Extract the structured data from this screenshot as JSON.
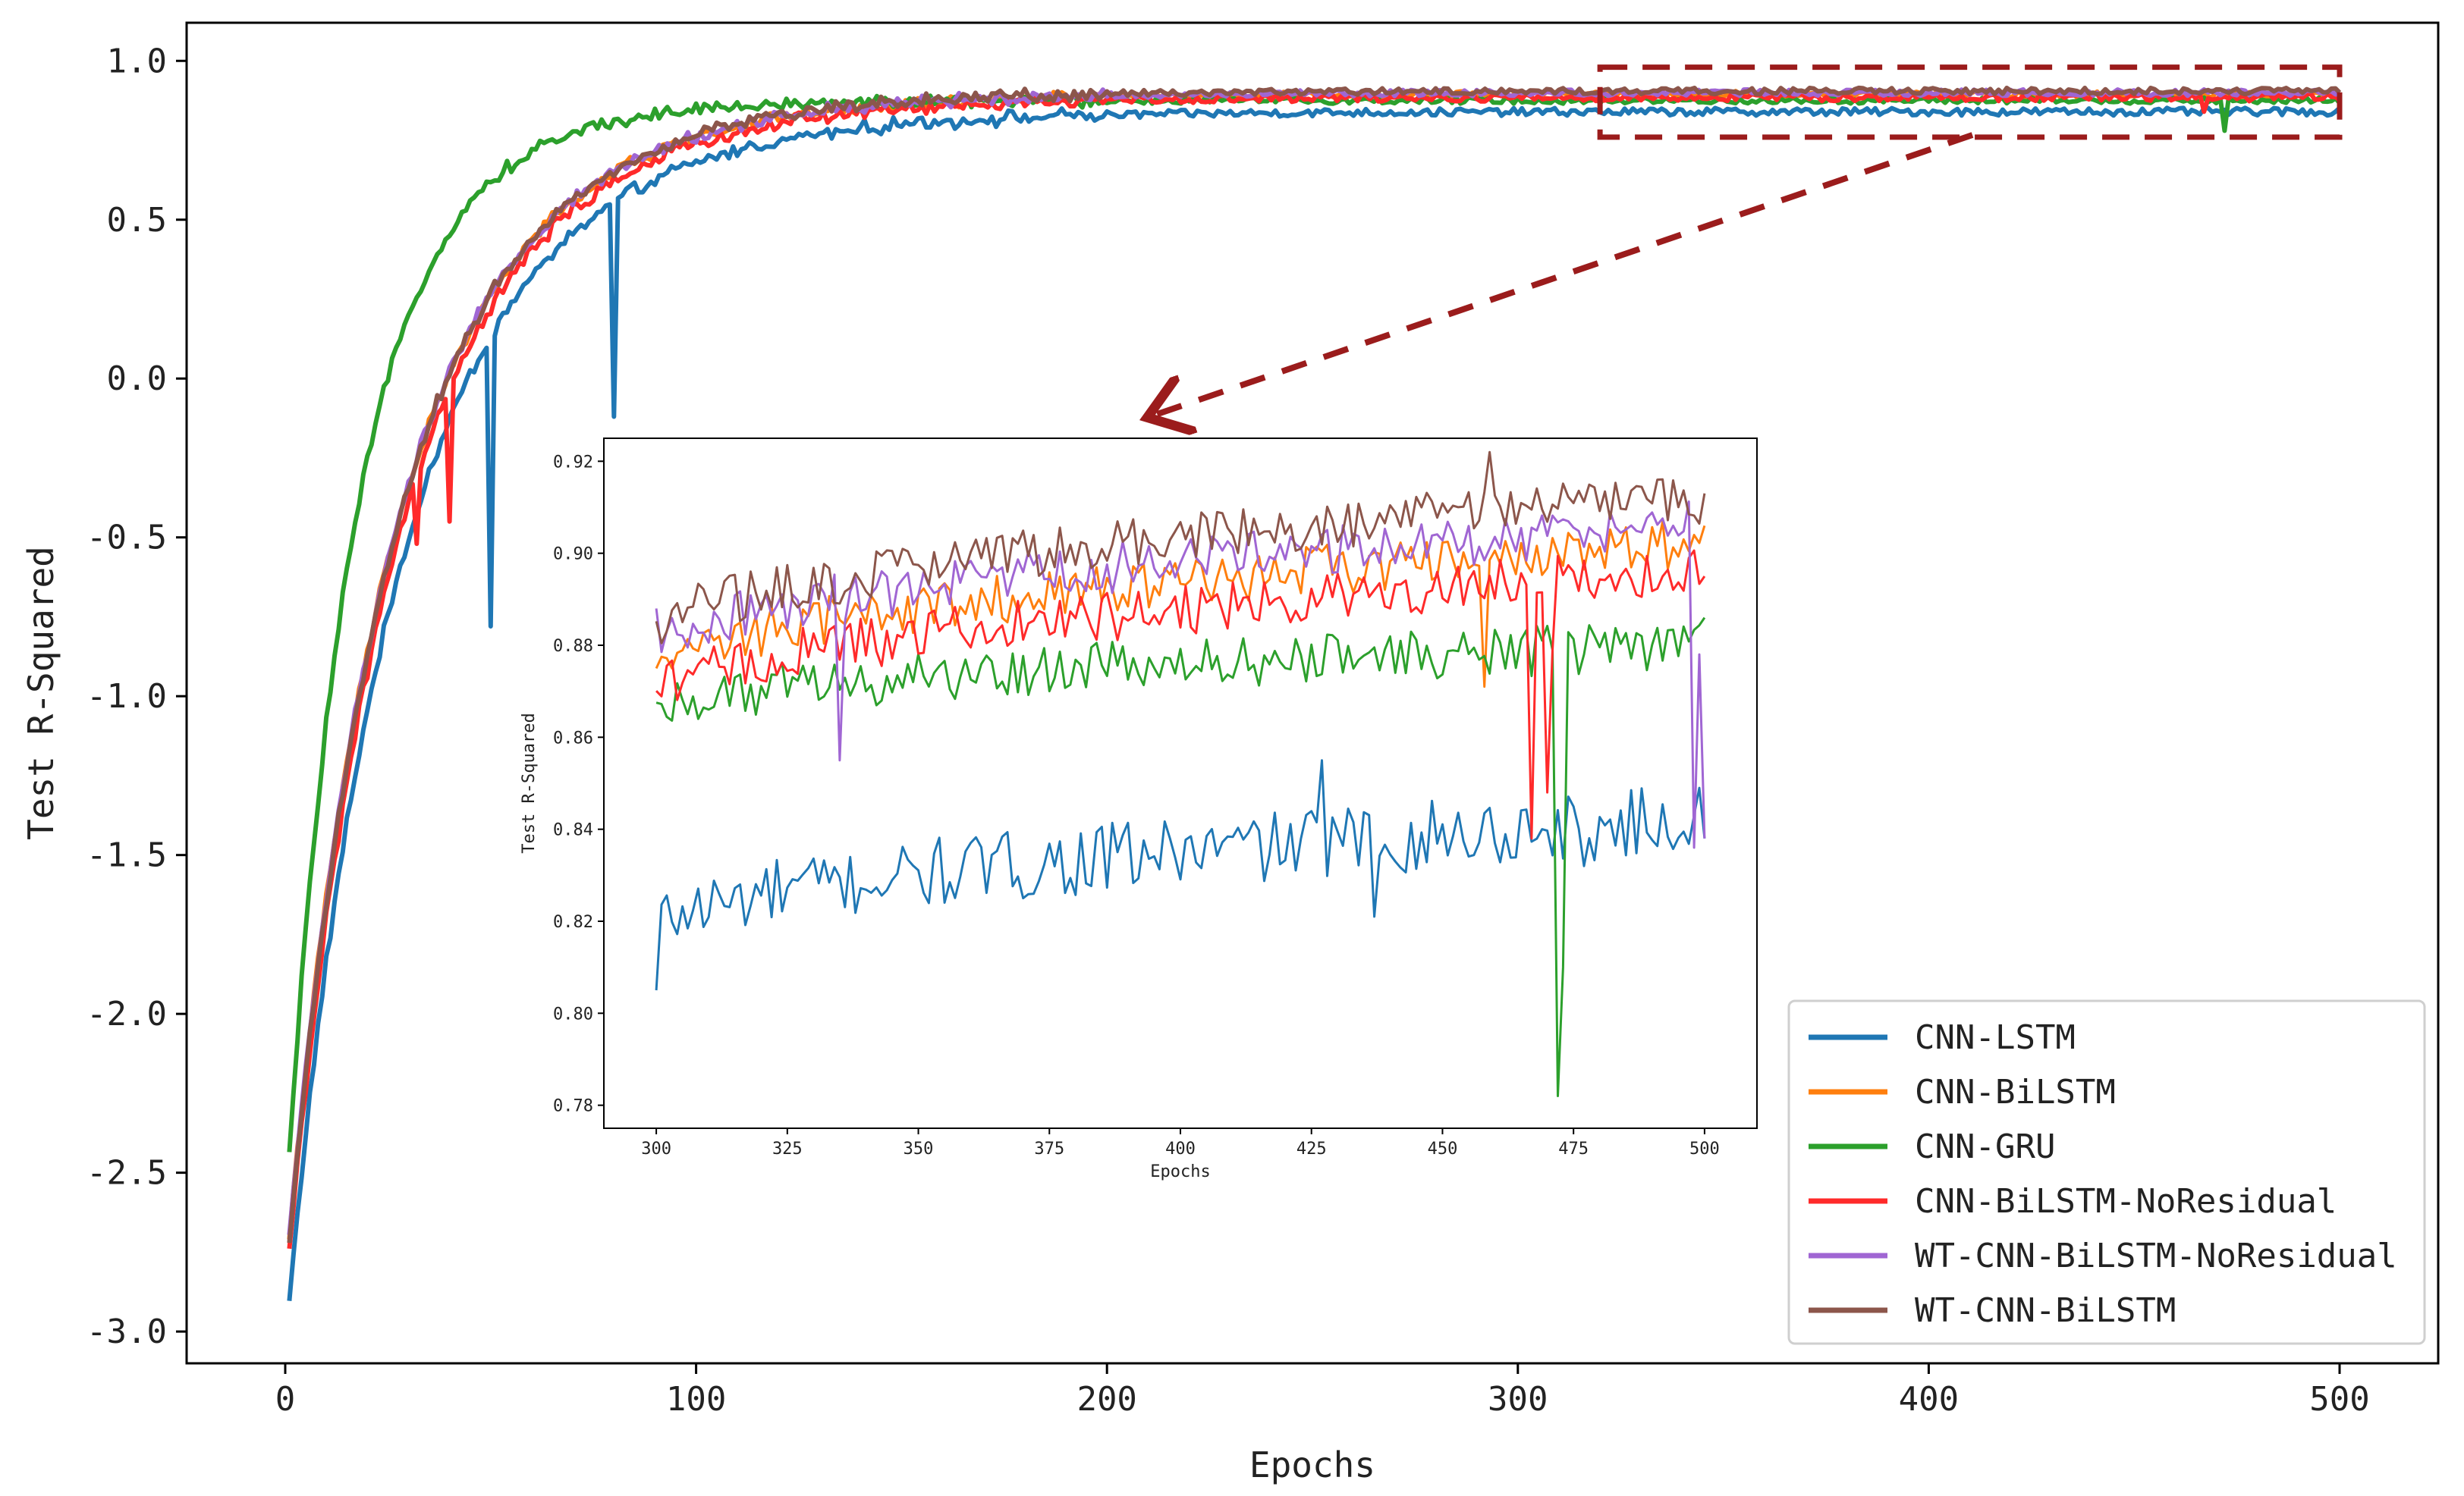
{
  "chart_data": [
    {
      "id": "main",
      "type": "line",
      "title": "",
      "xlabel": "Epochs",
      "ylabel": "Test R-Squared",
      "xlim": [
        -24,
        524
      ],
      "ylim": [
        -3.1,
        1.12
      ],
      "xticks": [
        0,
        100,
        200,
        300,
        400,
        500
      ],
      "xtick_labels": [
        "0",
        "100",
        "200",
        "300",
        "400",
        "500"
      ],
      "yticks": [
        1.0,
        0.5,
        0.0,
        -0.5,
        -1.0,
        -1.5,
        -2.0,
        -2.5,
        -3.0
      ],
      "ytick_labels": [
        "1.0",
        "0.5",
        "0.0",
        "-0.5",
        "-1.0",
        "-1.5",
        "-2.0",
        "-2.5",
        "-3.0"
      ],
      "grid": false,
      "legend_position": "lower-right",
      "series": [
        {
          "name": "CNN-LSTM",
          "color": "#1f77b4",
          "start": -2.9,
          "plateau": 0.84,
          "rate": 45,
          "noise": 0.012,
          "spikes": [
            [
              50,
              -0.78
            ],
            [
              80,
              -0.12
            ]
          ]
        },
        {
          "name": "CNN-BiLSTM",
          "color": "#ff7f0e",
          "start": -2.7,
          "plateau": 0.895,
          "rate": 43,
          "noise": 0.01,
          "spikes": []
        },
        {
          "name": "CNN-GRU",
          "color": "#2ca02c",
          "start": -2.45,
          "plateau": 0.875,
          "rate": 28,
          "noise": 0.01,
          "spikes": [
            [
              472,
              0.78
            ]
          ]
        },
        {
          "name": "CNN-BiLSTM-NoResidual",
          "color": "#ff2a2a",
          "start": -2.75,
          "plateau": 0.885,
          "rate": 44,
          "noise": 0.012,
          "spikes": [
            [
              32,
              -0.52
            ],
            [
              40,
              -0.45
            ],
            [
              467,
              0.84
            ]
          ]
        },
        {
          "name": "WT-CNN-BiLSTM-NoResidual",
          "color": "#a066d3",
          "start": -2.7,
          "plateau": 0.9,
          "rate": 43,
          "noise": 0.01,
          "spikes": []
        },
        {
          "name": "WT-CNN-BiLSTM",
          "color": "#8c564b",
          "start": -2.72,
          "plateau": 0.905,
          "rate": 43,
          "noise": 0.01,
          "spikes": []
        }
      ]
    },
    {
      "id": "inset",
      "type": "line",
      "title": "",
      "xlabel": "Epochs",
      "ylabel": "Test R-Squared",
      "xlim": [
        290,
        510
      ],
      "ylim": [
        0.775,
        0.925
      ],
      "xticks": [
        300,
        325,
        350,
        375,
        400,
        425,
        450,
        475,
        500
      ],
      "xtick_labels": [
        "300",
        "325",
        "350",
        "375",
        "400",
        "425",
        "450",
        "475",
        "500"
      ],
      "yticks": [
        0.92,
        0.9,
        0.88,
        0.86,
        0.84,
        0.82,
        0.8,
        0.78
      ],
      "ytick_labels": [
        "0.92",
        "0.90",
        "0.88",
        "0.86",
        "0.84",
        "0.82",
        "0.80",
        "0.78"
      ],
      "grid": false,
      "series": [
        {
          "name": "CNN-LSTM",
          "color": "#1f77b4",
          "start_val": 0.818,
          "end_val": 0.842,
          "amp": 0.007,
          "spikes": [
            [
              300,
              0.805
            ],
            [
              437,
              0.821
            ],
            [
              427,
              0.855
            ],
            [
              477,
              0.832
            ],
            [
              499,
              0.849
            ],
            [
              500,
              0.838
            ]
          ]
        },
        {
          "name": "CNN-BiLSTM",
          "color": "#ff7f0e",
          "start_val": 0.874,
          "end_val": 0.902,
          "amp": 0.005,
          "spikes": [
            [
              458,
              0.871
            ],
            [
              500,
              0.906
            ]
          ]
        },
        {
          "name": "CNN-GRU",
          "color": "#2ca02c",
          "start_val": 0.866,
          "end_val": 0.88,
          "amp": 0.005,
          "spikes": [
            [
              472,
              0.782
            ],
            [
              473,
              0.81
            ],
            [
              477,
              0.878
            ],
            [
              500,
              0.886
            ]
          ]
        },
        {
          "name": "CNN-BiLSTM-NoResidual",
          "color": "#ff2a2a",
          "start_val": 0.868,
          "end_val": 0.896,
          "amp": 0.005,
          "spikes": [
            [
              467,
              0.838
            ],
            [
              470,
              0.848
            ],
            [
              471,
              0.879
            ],
            [
              500,
              0.895
            ]
          ]
        },
        {
          "name": "WT-CNN-BiLSTM-NoResidual",
          "color": "#a066d3",
          "start_val": 0.879,
          "end_val": 0.906,
          "amp": 0.005,
          "spikes": [
            [
              335,
              0.855
            ],
            [
              300,
              0.888
            ],
            [
              498,
              0.836
            ],
            [
              499,
              0.878
            ],
            [
              500,
              0.838
            ]
          ]
        },
        {
          "name": "WT-CNN-BiLSTM",
          "color": "#8c564b",
          "start_val": 0.882,
          "end_val": 0.912,
          "amp": 0.005,
          "spikes": [
            [
              459,
              0.922
            ],
            [
              500,
              0.913
            ]
          ]
        }
      ]
    }
  ],
  "legend": {
    "entries": [
      {
        "label": "CNN-LSTM",
        "color": "#1f77b4"
      },
      {
        "label": "CNN-BiLSTM",
        "color": "#ff7f0e"
      },
      {
        "label": "CNN-GRU",
        "color": "#2ca02c"
      },
      {
        "label": "CNN-BiLSTM-NoResidual",
        "color": "#ff2a2a"
      },
      {
        "label": "WT-CNN-BiLSTM-NoResidual",
        "color": "#a066d3"
      },
      {
        "label": "WT-CNN-BiLSTM",
        "color": "#8c564b"
      }
    ]
  },
  "zoom_box": {
    "x_range": [
      320,
      500
    ],
    "y_range": [
      0.76,
      0.98
    ],
    "color": "#9b1c1c"
  }
}
